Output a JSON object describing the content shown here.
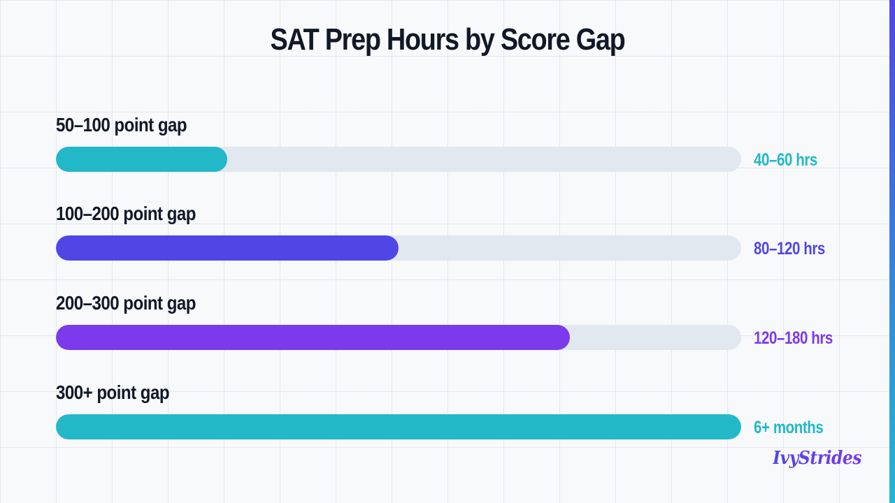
{
  "page": {
    "brand": "IvyStrides",
    "accent_top": "#4f46e5",
    "accent_bottom": "#22b8cf"
  },
  "chart_data": {
    "type": "bar",
    "orientation": "horizontal",
    "title": "SAT Prep Hours by Score Gap",
    "categories": [
      "50–100 point gap",
      "100–200 point gap",
      "200–300 point gap",
      "300+ point gap"
    ],
    "values": [
      0.25,
      0.5,
      0.75,
      1.0
    ],
    "value_labels": [
      "40–60 hrs",
      "80–120 hrs",
      "120–180 hrs",
      "6+ months"
    ],
    "colors": [
      "#22b8c7",
      "#4f46e5",
      "#7c3aed",
      "#22b8c7"
    ],
    "track_color": "#e2e8f0",
    "grid": true,
    "legend": "none"
  }
}
